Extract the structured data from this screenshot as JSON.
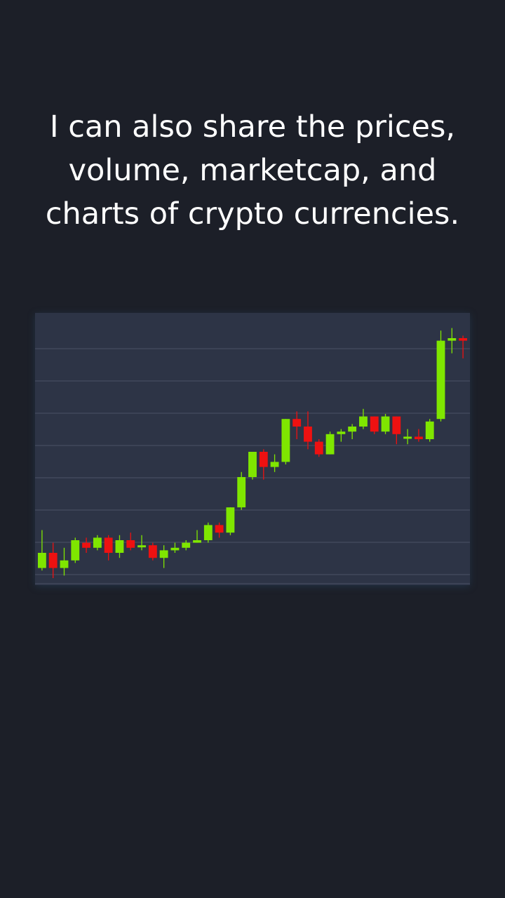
{
  "caption": {
    "line1": "I can also share the prices,",
    "line2": "volume, marketcap, and",
    "line3": "charts of crypto currencies."
  },
  "colors": {
    "background": "#1c1f28",
    "chart_background": "#2d3446",
    "gridline": "#4a5266",
    "up": "#7fe600",
    "down": "#ee1111"
  },
  "chart_data": {
    "type": "candlestick",
    "grid": true,
    "ylim": [
      0,
      100
    ],
    "candles": [
      {
        "o": 4,
        "c": 10,
        "h": 19,
        "l": 3
      },
      {
        "o": 10,
        "c": 4,
        "h": 14,
        "l": 0
      },
      {
        "o": 4,
        "c": 7,
        "h": 12,
        "l": 1
      },
      {
        "o": 7,
        "c": 15,
        "h": 16,
        "l": 6
      },
      {
        "o": 14,
        "c": 12,
        "h": 16,
        "l": 10
      },
      {
        "o": 12,
        "c": 16,
        "h": 17,
        "l": 11
      },
      {
        "o": 16,
        "c": 10,
        "h": 17,
        "l": 7
      },
      {
        "o": 10,
        "c": 15,
        "h": 17,
        "l": 8
      },
      {
        "o": 15,
        "c": 12,
        "h": 18,
        "l": 11
      },
      {
        "o": 13,
        "c": 13,
        "h": 17,
        "l": 11
      },
      {
        "o": 13,
        "c": 8,
        "h": 14,
        "l": 7
      },
      {
        "o": 8,
        "c": 11,
        "h": 13,
        "l": 4
      },
      {
        "o": 11,
        "c": 12,
        "h": 14,
        "l": 10
      },
      {
        "o": 12,
        "c": 14,
        "h": 15,
        "l": 11
      },
      {
        "o": 14,
        "c": 15,
        "h": 19,
        "l": 14
      },
      {
        "o": 15,
        "c": 21,
        "h": 22,
        "l": 14
      },
      {
        "o": 21,
        "c": 18,
        "h": 22,
        "l": 16
      },
      {
        "o": 18,
        "c": 28,
        "h": 28,
        "l": 17
      },
      {
        "o": 28,
        "c": 40,
        "h": 42,
        "l": 27
      },
      {
        "o": 40,
        "c": 50,
        "h": 50,
        "l": 39
      },
      {
        "o": 50,
        "c": 44,
        "h": 51,
        "l": 39
      },
      {
        "o": 44,
        "c": 46,
        "h": 49,
        "l": 42
      },
      {
        "o": 46,
        "c": 63,
        "h": 63,
        "l": 45
      },
      {
        "o": 63,
        "c": 60,
        "h": 66,
        "l": 55
      },
      {
        "o": 60,
        "c": 54,
        "h": 66,
        "l": 51
      },
      {
        "o": 54,
        "c": 49,
        "h": 55,
        "l": 48
      },
      {
        "o": 49,
        "c": 57,
        "h": 58,
        "l": 49
      },
      {
        "o": 57,
        "c": 58,
        "h": 59,
        "l": 54
      },
      {
        "o": 58,
        "c": 60,
        "h": 61,
        "l": 55
      },
      {
        "o": 60,
        "c": 64,
        "h": 67,
        "l": 59
      },
      {
        "o": 64,
        "c": 58,
        "h": 64,
        "l": 57
      },
      {
        "o": 58,
        "c": 64,
        "h": 65,
        "l": 57
      },
      {
        "o": 64,
        "c": 57,
        "h": 64,
        "l": 53
      },
      {
        "o": 56,
        "c": 56,
        "h": 59,
        "l": 53
      },
      {
        "o": 56,
        "c": 55,
        "h": 59,
        "l": 54
      },
      {
        "o": 55,
        "c": 62,
        "h": 63,
        "l": 54
      },
      {
        "o": 63,
        "c": 94,
        "h": 98,
        "l": 62
      },
      {
        "o": 94,
        "c": 95,
        "h": 99,
        "l": 89
      },
      {
        "o": 95,
        "c": 94,
        "h": 96,
        "l": 87
      }
    ]
  }
}
